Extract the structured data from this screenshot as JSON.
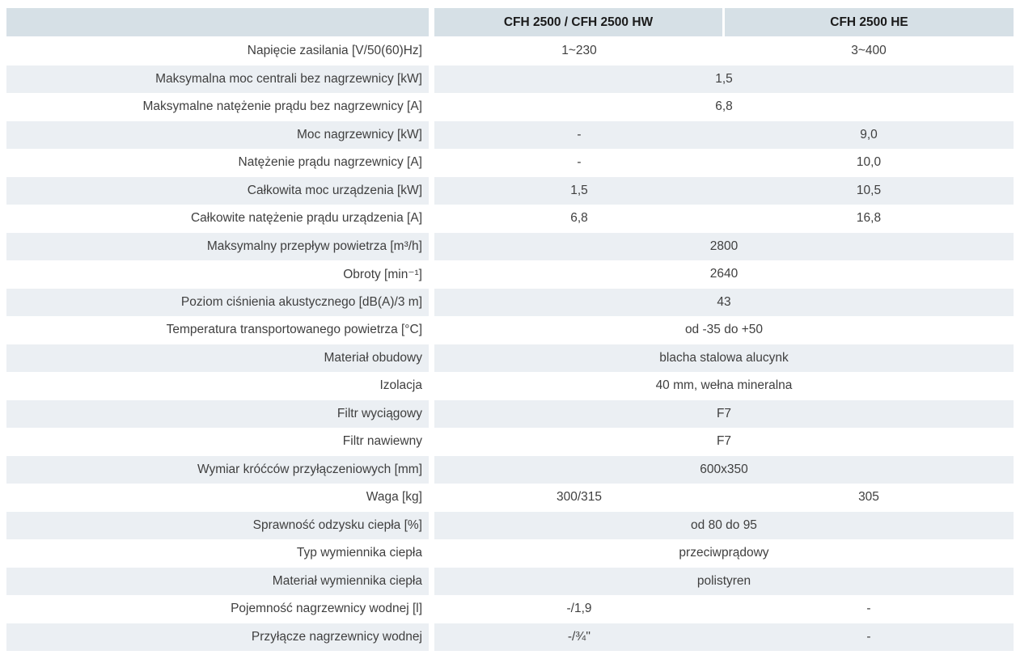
{
  "table": {
    "title": "CFH 2500 technical specification table",
    "colors": {
      "header_bg": "#d6e0e6",
      "row_alt_bg": "#ebeff3",
      "row_bg": "#ffffff",
      "text_color": "#3f3f3f",
      "header_text_color": "#1a1a1a"
    },
    "header": {
      "label_col": "",
      "col1": "CFH 2500 / CFH 2500 HW",
      "col2": "CFH 2500 HE"
    },
    "rows": [
      {
        "label": "Napięcie zasilania [V/50(60)Hz]",
        "values": [
          "1~230",
          "3~400"
        ]
      },
      {
        "label": "Maksymalna moc centrali bez nagrzewnicy [kW]",
        "span": "1,5"
      },
      {
        "label": "Maksymalne natężenie prądu bez nagrzewnicy [A]",
        "span": "6,8"
      },
      {
        "label": "Moc nagrzewnicy [kW]",
        "values": [
          "-",
          "9,0"
        ]
      },
      {
        "label": "Natężenie prądu nagrzewnicy [A]",
        "values": [
          "-",
          "10,0"
        ]
      },
      {
        "label": "Całkowita moc urządzenia [kW]",
        "values": [
          "1,5",
          "10,5"
        ]
      },
      {
        "label": "Całkowite natężenie prądu urządzenia [A]",
        "values": [
          "6,8",
          "16,8"
        ]
      },
      {
        "label": "Maksymalny przepływ powietrza [m³/h]",
        "span": "2800"
      },
      {
        "label": "Obroty [min⁻¹]",
        "span": "2640"
      },
      {
        "label": "Poziom ciśnienia akustycznego [dB(A)/3 m]",
        "span": "43"
      },
      {
        "label": "Temperatura transportowanego powietrza [°C]",
        "span": "od -35 do +50"
      },
      {
        "label": "Materiał obudowy",
        "span": "blacha stalowa alucynk"
      },
      {
        "label": "Izolacja",
        "span": "40 mm, wełna mineralna"
      },
      {
        "label": "Filtr wyciągowy",
        "span": "F7"
      },
      {
        "label": "Filtr nawiewny",
        "span": "F7"
      },
      {
        "label": "Wymiar króćców przyłączeniowych [mm]",
        "span": "600x350"
      },
      {
        "label": "Waga [kg]",
        "values": [
          "300/315",
          "305"
        ]
      },
      {
        "label": "Sprawność odzysku ciepła [%]",
        "span": "od 80 do 95"
      },
      {
        "label": "Typ wymiennika ciepła",
        "span": "przeciwprądowy"
      },
      {
        "label": "Materiał wymiennika ciepła",
        "span": "polistyren"
      },
      {
        "label": "Pojemność nagrzewnicy wodnej [l]",
        "values": [
          "-/1,9",
          "-"
        ]
      },
      {
        "label": "Przyłącze nagrzewnicy wodnej",
        "values": [
          "-/¾''",
          "-"
        ]
      }
    ]
  }
}
